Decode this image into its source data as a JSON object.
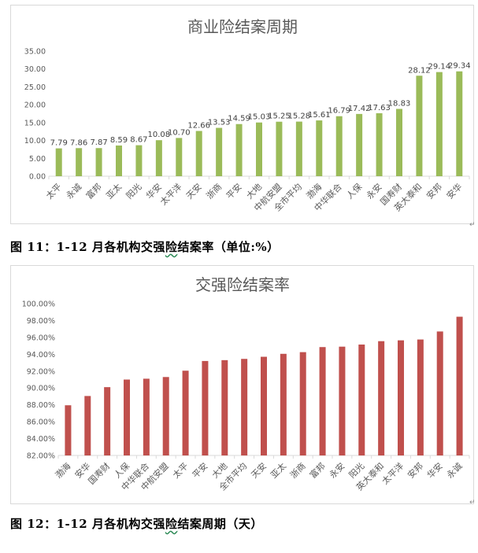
{
  "figures": [
    {
      "caption_prefix": "图 11：1-12 月各机构交强",
      "caption_underlined": "险",
      "caption_suffix": "结案率（单位:%）"
    },
    {
      "caption_prefix": "图 12：1-12 月各机构交强",
      "caption_underlined": "险",
      "caption_suffix": "结案周期（天）"
    }
  ],
  "chart_data": [
    {
      "type": "bar",
      "title": "商业险结案周期",
      "categories": [
        "太平",
        "永诚",
        "富邦",
        "亚太",
        "阳光",
        "华安",
        "太平洋",
        "天安",
        "浙商",
        "平安",
        "大地",
        "中航安盟",
        "全市平均",
        "渤海",
        "中华联合",
        "人保",
        "永安",
        "国寿财",
        "英大泰和",
        "安邦",
        "安华"
      ],
      "values": [
        7.79,
        7.86,
        7.87,
        8.59,
        8.67,
        10.08,
        10.7,
        12.66,
        13.53,
        14.59,
        15.03,
        15.25,
        15.28,
        15.61,
        16.79,
        17.42,
        17.63,
        18.83,
        28.12,
        29.14,
        29.34
      ],
      "value_labels": [
        "7.79",
        "7.86",
        "7.87",
        "8.59",
        "8.67",
        "10.08",
        "10.70",
        "12.66",
        "13.53",
        "14.59",
        "15.03",
        "15.25",
        "15.28",
        "15.61",
        "16.79",
        "17.42",
        "17.63",
        "18.83",
        "28.12",
        "29.14",
        "29.34"
      ],
      "ylim": [
        0,
        35
      ],
      "yticks": [
        "0.00",
        "5.00",
        "10.00",
        "15.00",
        "20.00",
        "25.00",
        "30.00",
        "35.00"
      ],
      "color": "#9bbb59",
      "grid": false,
      "xlabel": "",
      "ylabel": ""
    },
    {
      "type": "bar",
      "title": "交强险结案率",
      "categories": [
        "渤海",
        "安华",
        "国寿财",
        "人保",
        "中华联合",
        "中航安盟",
        "太平",
        "平安",
        "大地",
        "全市平均",
        "天安",
        "亚太",
        "浙商",
        "富邦",
        "永安",
        "阳光",
        "英大泰和",
        "太平洋",
        "安邦",
        "华安",
        "永诚"
      ],
      "values": [
        87.95,
        89.05,
        90.1,
        91.0,
        91.1,
        91.3,
        92.05,
        93.2,
        93.3,
        93.45,
        93.7,
        94.05,
        94.25,
        94.85,
        94.9,
        95.15,
        95.55,
        95.65,
        95.75,
        96.7,
        98.45
      ],
      "ylim": [
        82,
        100
      ],
      "yticks": [
        "82.00%",
        "84.00%",
        "86.00%",
        "88.00%",
        "90.00%",
        "92.00%",
        "94.00%",
        "96.00%",
        "98.00%",
        "100.00%"
      ],
      "color": "#c0504d",
      "grid": false,
      "xlabel": "",
      "ylabel": ""
    }
  ]
}
